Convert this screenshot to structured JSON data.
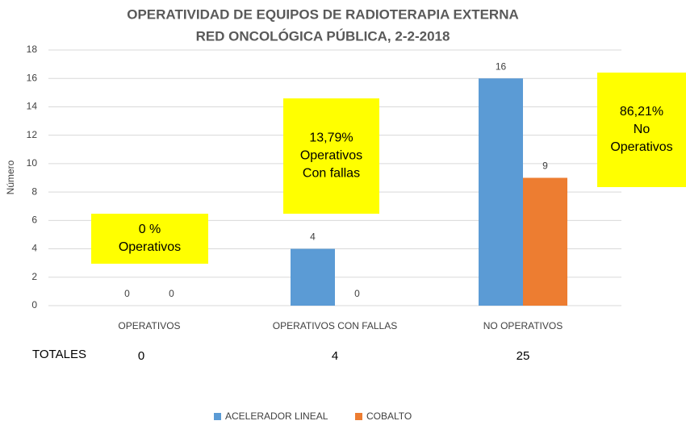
{
  "chart_data": {
    "type": "bar",
    "title": "OPERATIVIDAD DE EQUIPOS DE RADIOTERAPIA EXTERNA",
    "subtitle": "RED ONCOLÓGICA PÚBLICA, 2-2-2018",
    "y_label": "Número",
    "categories": [
      "OPERATIVOS",
      "OPERATIVOS CON FALLAS",
      "NO OPERATIVOS"
    ],
    "series": [
      {
        "name": "ACELERADOR LINEAL",
        "color": "#5b9bd5",
        "values": [
          0,
          4,
          16
        ]
      },
      {
        "name": "COBALTO",
        "color": "#ed7d31",
        "values": [
          0,
          0,
          9
        ]
      }
    ],
    "ylim": [
      0,
      18
    ],
    "yticks": [
      0,
      2,
      4,
      6,
      8,
      10,
      12,
      14,
      16,
      18
    ],
    "grid": true,
    "legend": "bottom",
    "totals": {
      "label": "TOTALES",
      "values": [
        0,
        4,
        25
      ]
    },
    "annotations": [
      {
        "lines": [
          "0 %",
          "Operativos"
        ]
      },
      {
        "lines": [
          "13,79%",
          "Operativos",
          "Con fallas"
        ]
      },
      {
        "lines": [
          "86,21%",
          "No",
          "Operativos"
        ]
      }
    ],
    "annotation_color": "#ffff00"
  }
}
